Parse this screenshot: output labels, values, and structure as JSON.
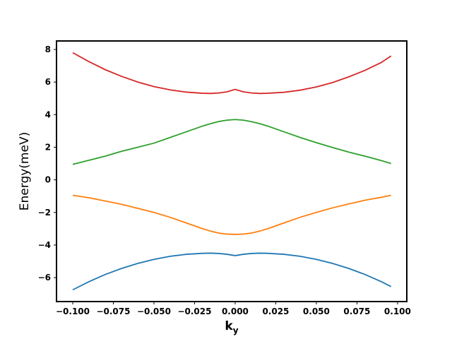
{
  "chart_data": {
    "type": "line",
    "y_label": "Energy(meV)",
    "x_label": {
      "base": "k",
      "subscript": "y"
    },
    "x": [
      -0.1,
      -0.09,
      -0.08,
      -0.07,
      -0.06,
      -0.05,
      -0.04,
      -0.03,
      -0.02,
      -0.015,
      -0.01,
      -0.005,
      0,
      0.005,
      0.01,
      0.015,
      0.02,
      0.03,
      0.04,
      0.05,
      0.06,
      0.07,
      0.08,
      0.09,
      0.096
    ],
    "series": [
      {
        "color": "#1f77b4",
        "values": [
          -6.75,
          -6.25,
          -5.81,
          -5.44,
          -5.13,
          -4.88,
          -4.69,
          -4.57,
          -4.51,
          -4.5,
          -4.52,
          -4.57,
          -4.65,
          -4.57,
          -4.52,
          -4.5,
          -4.51,
          -4.57,
          -4.69,
          -4.88,
          -5.13,
          -5.44,
          -5.81,
          -6.25,
          -6.55
        ]
      },
      {
        "color": "#ff7f0e",
        "values": [
          -0.95,
          -1.1,
          -1.3,
          -1.5,
          -1.75,
          -2.0,
          -2.3,
          -2.65,
          -3.0,
          -3.15,
          -3.27,
          -3.33,
          -3.35,
          -3.33,
          -3.27,
          -3.15,
          -3.0,
          -2.65,
          -2.3,
          -2.0,
          -1.72,
          -1.48,
          -1.25,
          -1.07,
          -0.95
        ]
      },
      {
        "color": "#2ca02c",
        "values": [
          0.95,
          1.2,
          1.45,
          1.75,
          2.0,
          2.25,
          2.6,
          2.95,
          3.3,
          3.45,
          3.58,
          3.66,
          3.7,
          3.66,
          3.57,
          3.45,
          3.3,
          2.95,
          2.6,
          2.28,
          1.98,
          1.7,
          1.45,
          1.18,
          1.0
        ]
      },
      {
        "color": "#d62728",
        "values": [
          7.8,
          7.25,
          6.76,
          6.35,
          6.0,
          5.72,
          5.52,
          5.38,
          5.31,
          5.3,
          5.33,
          5.4,
          5.55,
          5.4,
          5.33,
          5.3,
          5.31,
          5.37,
          5.5,
          5.7,
          5.97,
          6.32,
          6.72,
          7.2,
          7.6
        ]
      }
    ],
    "xlim": [
      -0.11,
      0.1057
    ],
    "ylim": [
      -7.47,
      8.52
    ],
    "xticks": [
      {
        "value": -0.1,
        "label": "−0.100"
      },
      {
        "value": -0.075,
        "label": "−0.075"
      },
      {
        "value": -0.05,
        "label": "−0.050"
      },
      {
        "value": -0.025,
        "label": "−0.025"
      },
      {
        "value": 0,
        "label": "0.000"
      },
      {
        "value": 0.025,
        "label": "0.025"
      },
      {
        "value": 0.05,
        "label": "0.050"
      },
      {
        "value": 0.075,
        "label": "0.075"
      },
      {
        "value": 0.1,
        "label": "0.100"
      }
    ],
    "yticks": [
      {
        "value": -6,
        "label": "−6"
      },
      {
        "value": -4,
        "label": "−4"
      },
      {
        "value": -2,
        "label": "−2"
      },
      0,
      2,
      4,
      6,
      8
    ],
    "grid": false
  }
}
